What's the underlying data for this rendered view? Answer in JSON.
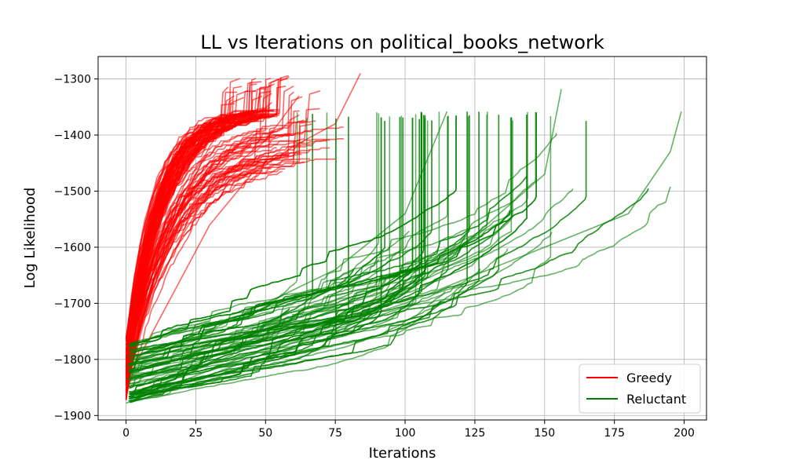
{
  "chart_data": {
    "type": "line",
    "title": "LL vs Iterations on political_books_network",
    "xlabel": "Iterations",
    "ylabel": "Log Likelihood",
    "xlim": [
      -10,
      208
    ],
    "ylim": [
      -1908,
      -1260
    ],
    "x_ticks": [
      0,
      25,
      50,
      75,
      100,
      125,
      150,
      175,
      200
    ],
    "x_tick_labels": [
      "0",
      "25",
      "50",
      "75",
      "100",
      "125",
      "150",
      "175",
      "200"
    ],
    "y_ticks": [
      -1900,
      -1800,
      -1700,
      -1600,
      -1500,
      -1400,
      -1300
    ],
    "y_tick_labels": [
      "−1900",
      "−1800",
      "−1700",
      "−1600",
      "−1500",
      "−1400",
      "−1300"
    ],
    "grid": true,
    "legend_position": "bottom-right",
    "series": [
      {
        "name": "Greedy",
        "color": "#ff0000",
        "opacity": 0.6,
        "count": 120,
        "start_y_range": [
          -1875,
          -1760
        ],
        "end_x_range": [
          35,
          84
        ],
        "typical_end_y": -1358,
        "max_end_y": -1290,
        "representative_runs": [
          {
            "x": [
              0,
              10,
              20,
              30,
              38,
              45,
              55
            ],
            "y": [
              -1800,
              -1640,
              -1520,
              -1420,
              -1358,
              -1358,
              -1358
            ]
          },
          {
            "x": [
              0,
              10,
              20,
              30,
              40,
              50,
              62
            ],
            "y": [
              -1820,
              -1680,
              -1580,
              -1500,
              -1450,
              -1410,
              -1330
            ]
          },
          {
            "x": [
              0,
              15,
              30,
              45,
              60,
              75,
              84
            ],
            "y": [
              -1840,
              -1700,
              -1560,
              -1470,
              -1420,
              -1380,
              -1290
            ]
          }
        ]
      },
      {
        "name": "Reluctant",
        "color": "#008000",
        "opacity": 0.6,
        "count": 110,
        "start_y_range": [
          -1878,
          -1770
        ],
        "end_x_range": [
          55,
          199
        ],
        "typical_end_y": -1358,
        "max_end_y": -1318,
        "representative_runs": [
          {
            "x": [
              0,
              25,
              50,
              75,
              100,
              115
            ],
            "y": [
              -1810,
              -1760,
              -1700,
              -1640,
              -1540,
              -1358
            ]
          },
          {
            "x": [
              0,
              40,
              80,
              120,
              150,
              156
            ],
            "y": [
              -1835,
              -1780,
              -1700,
              -1600,
              -1470,
              -1318
            ]
          },
          {
            "x": [
              0,
              50,
              100,
              150,
              180,
              195,
              199
            ],
            "y": [
              -1878,
              -1780,
              -1700,
              -1600,
              -1540,
              -1430,
              -1358
            ]
          }
        ]
      }
    ]
  }
}
